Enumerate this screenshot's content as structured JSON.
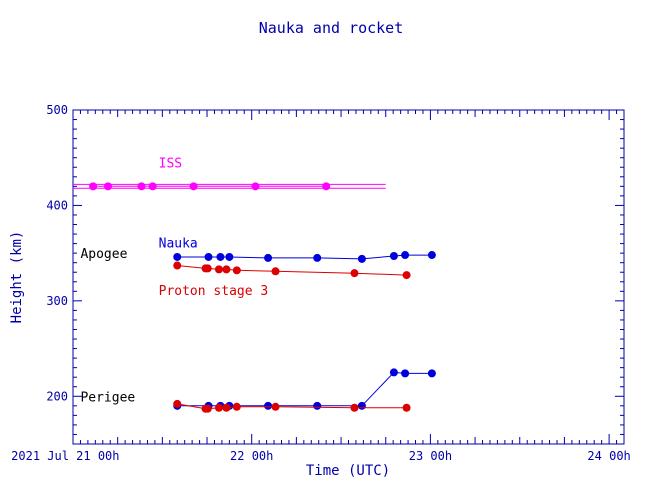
{
  "chart_data": {
    "type": "line",
    "title": "Nauka and rocket",
    "xlabel": "Time (UTC)",
    "ylabel": "Height (km)",
    "xlim_hours": [
      0,
      74
    ],
    "ylim": [
      150,
      500
    ],
    "grid": false,
    "y_ticks": [
      200,
      300,
      400,
      500
    ],
    "x_tick_labels": [
      {
        "at": 3,
        "text": "2021 Jul 21  00h"
      },
      {
        "at": 24,
        "text": "22  00h"
      },
      {
        "at": 48,
        "text": "23  00h"
      },
      {
        "at": 72,
        "text": "24  00h"
      }
    ],
    "annotations": [
      {
        "text": "Apogee",
        "x": 1,
        "y": 350
      },
      {
        "text": "Perigee",
        "x": 1,
        "y": 200
      }
    ],
    "series": [
      {
        "name": "ISS",
        "color": "#ff00ff",
        "label_at": {
          "x": 11.5,
          "y": 440
        },
        "lines": [
          {
            "x": [
              0,
              10,
              12,
              16,
              17.5,
              19,
              30,
              42
            ],
            "y": [
              422,
              422,
              422,
              422,
              422,
              422,
              422,
              422
            ],
            "markers": false
          },
          {
            "x": [
              0,
              42
            ],
            "y": [
              418,
              418
            ],
            "markers": false
          },
          {
            "x": [
              2.7,
              4.7,
              9.2,
              10.7,
              16.2,
              24.5,
              34
            ],
            "y": [
              420,
              420,
              420,
              420,
              420,
              420,
              420
            ],
            "markers": true
          }
        ]
      },
      {
        "name": "Nauka",
        "color": "#0000dd",
        "label_at": {
          "x": 11.5,
          "y": 356
        },
        "lines": [
          {
            "x": [
              14,
              18.2,
              19.8,
              21,
              26.2,
              32.8,
              38.8,
              43.1,
              44.6,
              48.2
            ],
            "y": [
              346,
              346,
              346,
              346,
              345,
              345,
              344,
              347,
              348,
              348
            ],
            "markers": true
          },
          {
            "x": [
              14,
              18.2,
              19.8,
              21,
              26.2,
              32.8,
              38.8,
              43.1,
              44.6,
              48.2
            ],
            "y": [
              190,
              190,
              190,
              190,
              190,
              190,
              190,
              225,
              224,
              224
            ],
            "markers": true
          }
        ]
      },
      {
        "name": "Proton stage 3",
        "color": "#dd0000",
        "label_at": {
          "x": 11.5,
          "y": 306
        },
        "lines": [
          {
            "x": [
              14,
              17.8,
              18.1,
              19.6,
              20.6,
              22,
              27.2,
              37.8,
              44.8
            ],
            "y": [
              337,
              334,
              334,
              333,
              333,
              332,
              331,
              329,
              327
            ],
            "markers": true
          },
          {
            "x": [
              14,
              17.8,
              18.1,
              19.6,
              20.6,
              22,
              27.2,
              37.8,
              44.8
            ],
            "y": [
              192,
              187,
              187,
              188,
              188,
              189,
              189,
              188,
              188
            ],
            "markers": true
          }
        ]
      }
    ]
  }
}
